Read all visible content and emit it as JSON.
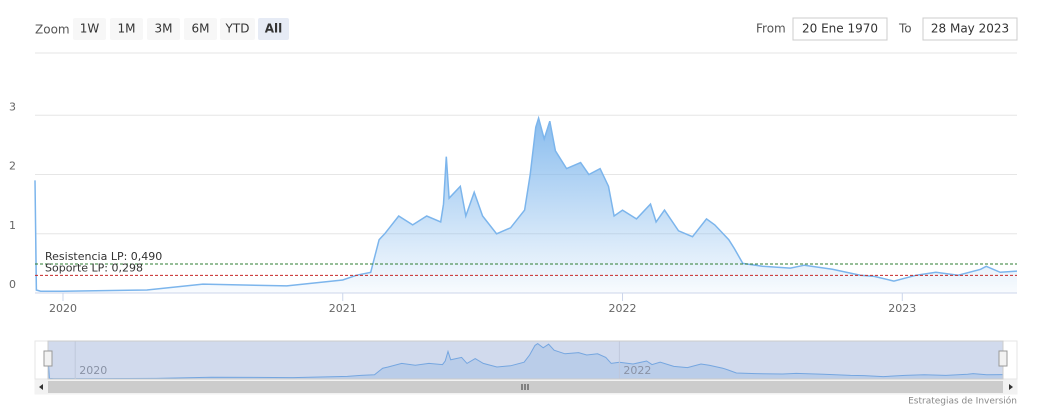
{
  "zoom_label": "Zoom",
  "range_buttons": [
    "1W",
    "1M",
    "3M",
    "6M",
    "YTD",
    "All"
  ],
  "selected_button": 5,
  "from_label": "From",
  "from_value": "20 Ene 1970",
  "to_label": "To",
  "to_value": "28 May 2023",
  "credits": "Estrategias de Inversión",
  "chart_data": {
    "type": "area",
    "series": [
      {
        "color": "#7cb5ec",
        "x": [
          2019.9,
          2019.905,
          2019.92,
          2020.0,
          2020.3,
          2020.5,
          2020.8,
          2021.0,
          2021.05,
          2021.1,
          2021.13,
          2021.15,
          2021.2,
          2021.25,
          2021.3,
          2021.35,
          2021.36,
          2021.37,
          2021.38,
          2021.42,
          2021.44,
          2021.47,
          2021.5,
          2021.55,
          2021.6,
          2021.65,
          2021.67,
          2021.69,
          2021.7,
          2021.72,
          2021.74,
          2021.76,
          2021.8,
          2021.85,
          2021.88,
          2021.92,
          2021.95,
          2021.97,
          2022.0,
          2022.05,
          2022.1,
          2022.12,
          2022.15,
          2022.2,
          2022.25,
          2022.3,
          2022.33,
          2022.38,
          2022.4,
          2022.43,
          2022.5,
          2022.6,
          2022.65,
          2022.75,
          2022.85,
          2022.9,
          2022.97,
          2023.05,
          2023.12,
          2023.2,
          2023.28,
          2023.3,
          2023.35,
          2023.41
        ],
        "values": [
          1.9,
          0.05,
          0.03,
          0.03,
          0.05,
          0.15,
          0.12,
          0.22,
          0.3,
          0.35,
          0.9,
          1.0,
          1.3,
          1.15,
          1.3,
          1.2,
          1.5,
          2.3,
          1.6,
          1.8,
          1.3,
          1.7,
          1.3,
          1.0,
          1.1,
          1.4,
          2.0,
          2.8,
          2.95,
          2.6,
          2.9,
          2.4,
          2.1,
          2.2,
          2.0,
          2.1,
          1.8,
          1.3,
          1.4,
          1.25,
          1.5,
          1.2,
          1.4,
          1.05,
          0.95,
          1.25,
          1.15,
          0.9,
          0.75,
          0.5,
          0.45,
          0.42,
          0.47,
          0.4,
          0.3,
          0.28,
          0.2,
          0.3,
          0.35,
          0.3,
          0.4,
          0.45,
          0.35,
          0.37
        ]
      }
    ],
    "xlim": [
      2019.9,
      2023.41
    ],
    "xticks": [
      2020,
      2021,
      2022,
      2023
    ],
    "ylim": [
      0,
      4
    ],
    "yticks": [
      0,
      1,
      2,
      3
    ],
    "grid": true,
    "plot_lines": [
      {
        "value": 0.49,
        "label": "Resistencia LP: 0,490",
        "color": "#2e7d32"
      },
      {
        "value": 0.298,
        "label": "Soporte LP: 0,298",
        "color": "#c62828"
      }
    ],
    "navigator_xticks": [
      2020,
      2022
    ]
  }
}
